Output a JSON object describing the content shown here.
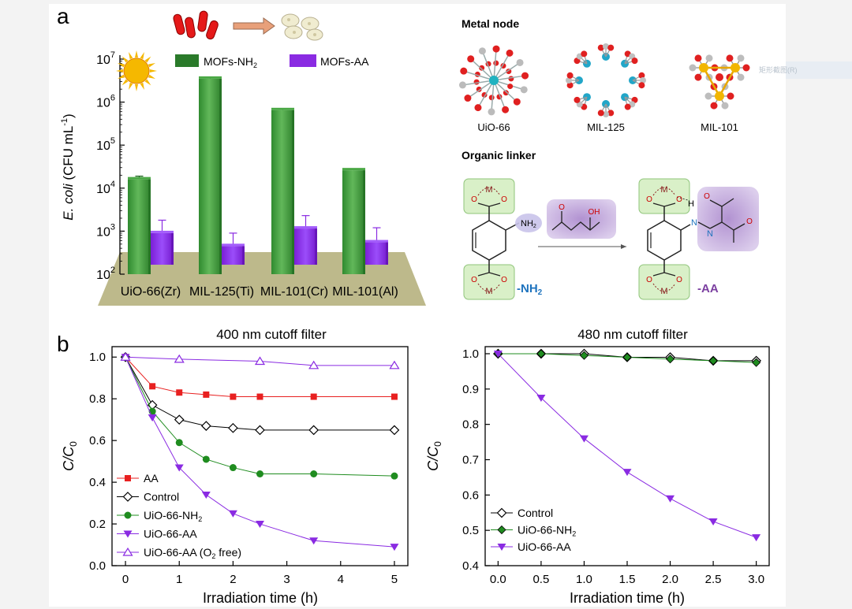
{
  "panel_labels": {
    "a": "a",
    "b": "b"
  },
  "watermark": "矩形截图(R)",
  "structures": {
    "metal_node_title": "Metal node",
    "metal_nodes": [
      "UiO-66",
      "MIL-125",
      "MIL-101"
    ],
    "organic_linker_title": "Organic linker",
    "atom_m": "M",
    "atom_o": "O",
    "atom_h": "H",
    "atom_n": "N",
    "group_nh2": "NH",
    "group_nh2_sub": "2",
    "reagent_oh": "OH",
    "label_nh2_main": "-NH",
    "label_nh2_sub": "2",
    "label_aa": "-AA"
  },
  "colors": {
    "green_bar": "#3a9a35",
    "purple_bar": "#8a2be2",
    "red_series": "#e82020",
    "green_series": "#1f8c1f",
    "purple_series": "#8a2be2",
    "floor": "#bdb98b",
    "sun": "#f5b800",
    "nh2_label": "#1e73be",
    "aa_label": "#7b3fa0"
  },
  "icons": [
    "bacteria-icon",
    "arrow-icon",
    "dead-bacteria-icon",
    "sun-icon"
  ],
  "chart_data": [
    {
      "type": "bar",
      "ylabel_italic": "E. coli",
      "ylabel_rest": " (CFU mL",
      "ylabel_sup": "-1",
      "ylabel_close": ")",
      "scale": "log",
      "ylim": [
        100,
        10000000
      ],
      "ytick_values": [
        2,
        3,
        4,
        5,
        6,
        7
      ],
      "ytick_base": "10",
      "categories": [
        "UiO-66(Zr)",
        "MIL-125(Ti)",
        "MIL-101(Cr)",
        "MIL-101(Al)"
      ],
      "legend_position": "top",
      "series": [
        {
          "name": "MOFs-NH",
          "name_sub": "2",
          "values": [
            16000,
            3500000,
            650000,
            26000
          ],
          "errors": [
            3000,
            300000,
            40000,
            2000
          ]
        },
        {
          "name": "MOFs-AA",
          "values": [
            900,
            450,
            1150,
            550
          ],
          "errors": [
            900,
            450,
            1150,
            650
          ]
        }
      ]
    },
    {
      "type": "line",
      "title": "400 nm cutoff filter",
      "xlabel": "Irradiation time (h)",
      "ylabel_main": "C/C",
      "ylabel_sub": "0",
      "xlim": [
        -0.25,
        5.25
      ],
      "ylim": [
        0,
        1.05
      ],
      "xticks": [
        0,
        1,
        2,
        3,
        4,
        5
      ],
      "yticks": [
        "0.0",
        "0.2",
        "0.4",
        "0.6",
        "0.8",
        "1.0"
      ],
      "legend_position": "bottom-left",
      "series": [
        {
          "name": "AA",
          "marker": "square",
          "x": [
            0,
            0.5,
            1,
            1.5,
            2,
            2.5,
            3.5,
            5
          ],
          "y": [
            1.0,
            0.86,
            0.83,
            0.82,
            0.81,
            0.81,
            0.81,
            0.81
          ]
        },
        {
          "name": "Control",
          "marker": "diamond-open",
          "x": [
            0,
            0.5,
            1,
            1.5,
            2,
            2.5,
            3.5,
            5
          ],
          "y": [
            1.0,
            0.77,
            0.7,
            0.67,
            0.66,
            0.65,
            0.65,
            0.65
          ]
        },
        {
          "name": "UiO-66-NH",
          "name_sub": "2",
          "marker": "circle",
          "x": [
            0,
            0.5,
            1,
            1.5,
            2,
            2.5,
            3.5,
            5
          ],
          "y": [
            1.0,
            0.74,
            0.59,
            0.51,
            0.47,
            0.44,
            0.44,
            0.43
          ]
        },
        {
          "name": "UiO-66-AA",
          "marker": "triangle-down",
          "x": [
            0,
            0.5,
            1,
            1.5,
            2,
            2.5,
            3.5,
            5
          ],
          "y": [
            1.0,
            0.71,
            0.47,
            0.34,
            0.25,
            0.2,
            0.12,
            0.09
          ]
        },
        {
          "name": "UiO-66-AA (O",
          "name_sub": "2",
          "name_tail": " free)",
          "marker": "triangle-up-open",
          "x": [
            0,
            1,
            2.5,
            3.5,
            5
          ],
          "y": [
            1.0,
            0.99,
            0.98,
            0.96,
            0.96
          ]
        }
      ]
    },
    {
      "type": "line",
      "title": "480 nm cutoff filter",
      "xlabel": "Irradiation time (h)",
      "ylabel_main": "C/C",
      "ylabel_sub": "0",
      "xlim": [
        -0.15,
        3.15
      ],
      "ylim": [
        0.4,
        1.02
      ],
      "xticks": [
        "0.0",
        "0.5",
        "1.0",
        "1.5",
        "2.0",
        "2.5",
        "3.0"
      ],
      "yticks": [
        "0.4",
        "0.5",
        "0.6",
        "0.7",
        "0.8",
        "0.9",
        "1.0"
      ],
      "legend_position": "bottom-left",
      "series": [
        {
          "name": "Control",
          "marker": "diamond-open",
          "x": [
            0,
            0.5,
            1,
            1.5,
            2,
            2.5,
            3
          ],
          "y": [
            1.0,
            1.0,
            1.0,
            0.99,
            0.99,
            0.98,
            0.98
          ]
        },
        {
          "name": "UiO-66-NH",
          "name_sub": "2",
          "marker": "diamond-green",
          "x": [
            0,
            0.5,
            1,
            1.5,
            2,
            2.5,
            3
          ],
          "y": [
            1.0,
            1.0,
            0.995,
            0.99,
            0.985,
            0.98,
            0.975
          ]
        },
        {
          "name": "UiO-66-AA",
          "marker": "triangle-down",
          "x": [
            0,
            0.5,
            1,
            1.5,
            2,
            2.5,
            3
          ],
          "y": [
            1.0,
            0.875,
            0.76,
            0.665,
            0.59,
            0.525,
            0.48
          ]
        }
      ]
    }
  ]
}
